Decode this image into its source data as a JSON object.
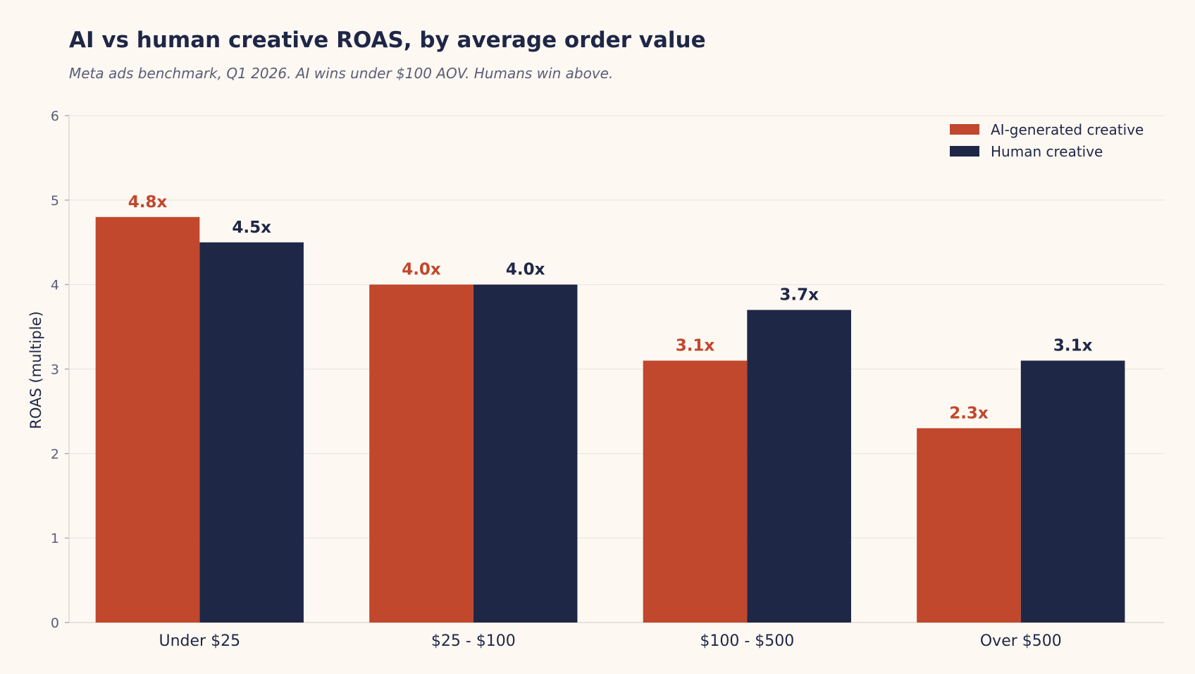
{
  "chart_data": {
    "type": "bar",
    "title": "AI vs human creative ROAS, by average order value",
    "subtitle": "Meta ads benchmark, Q1 2026. AI wins under $100 AOV. Humans win above.",
    "xlabel": "",
    "ylabel": "ROAS (multiple)",
    "categories": [
      "Under $25",
      "$25 - $100",
      "$100 - $500",
      "Over $500"
    ],
    "series": [
      {
        "name": "AI-generated creative",
        "color": "#c1472d",
        "values": [
          4.8,
          4.0,
          3.1,
          2.3
        ],
        "labels": [
          "4.8x",
          "4.0x",
          "3.1x",
          "2.3x"
        ]
      },
      {
        "name": "Human creative",
        "color": "#1f2747",
        "values": [
          4.5,
          4.0,
          3.7,
          3.1
        ],
        "labels": [
          "4.5x",
          "4.0x",
          "3.7x",
          "3.1x"
        ]
      }
    ],
    "ylim": [
      0,
      6
    ],
    "yticks": [
      "0",
      "1",
      "2",
      "3",
      "4",
      "5",
      "6"
    ],
    "grid": true,
    "legend_position": "top-right"
  }
}
